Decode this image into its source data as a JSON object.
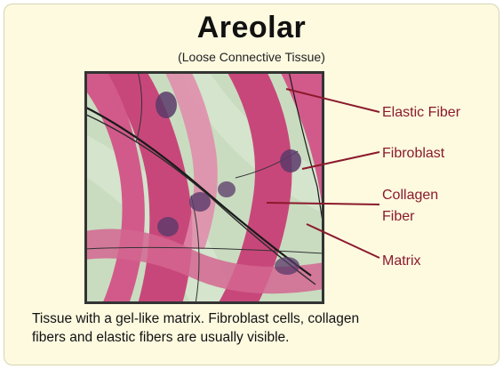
{
  "title": "Areolar",
  "subtitle": "(Loose Connective Tissue)",
  "labels": {
    "elastic_fiber": "Elastic Fiber",
    "fibroblast": "Fibroblast",
    "collagen_line1": "Collagen",
    "collagen_line2": "Fiber",
    "matrix": "Matrix"
  },
  "caption": {
    "line1": "Tissue with a gel-like matrix.  Fibroblast cells, collagen",
    "line2": "fibers and elastic fibers are usually visible."
  },
  "colors": {
    "background": "#fdfae0",
    "label_text": "#8b1a2b",
    "leader_line": "#8b1a2b",
    "collagen": "#c8477a",
    "matrix": "#c9dcc0",
    "nuclei": "#5a3a6a",
    "frame": "#333333"
  }
}
